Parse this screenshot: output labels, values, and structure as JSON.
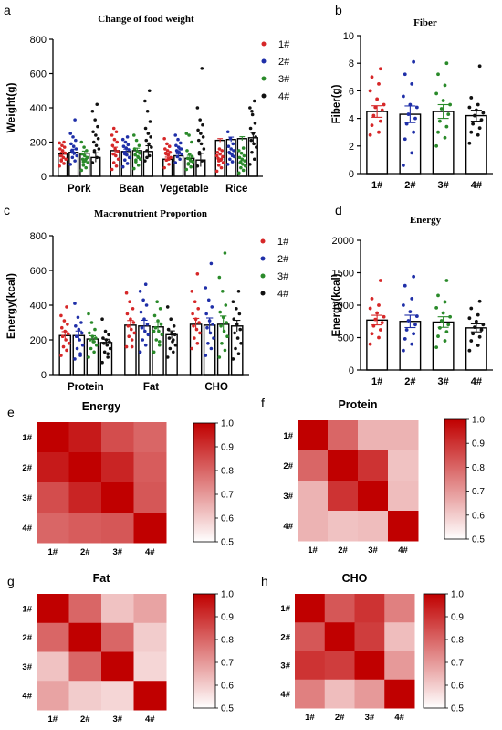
{
  "colors": {
    "1#": "#d62728",
    "2#": "#1f2fa8",
    "3#": "#2a8a2a",
    "4#": "#111111",
    "heat_high": "#c00000",
    "heat_low": "#ffffff"
  },
  "panel_letters": [
    "a",
    "b",
    "c",
    "d",
    "e",
    "f",
    "g",
    "h"
  ],
  "legend_labels": [
    "1#",
    "2#",
    "3#",
    "4#"
  ],
  "chart_data": [
    {
      "id": "a",
      "type": "bar",
      "title": "Change of  food weight",
      "ylabel": "Weight(g)",
      "xlabel": "",
      "categories": [
        "Pork",
        "Bean",
        "Vegetable",
        "Rice"
      ],
      "ylim": [
        0,
        800
      ],
      "yticks": [
        0,
        200,
        400,
        600,
        800
      ],
      "series": [
        {
          "name": "1#",
          "values": [
            130,
            150,
            100,
            210
          ]
        },
        {
          "name": "2#",
          "values": [
            140,
            145,
            120,
            215
          ]
        },
        {
          "name": "3#",
          "values": [
            135,
            150,
            105,
            220
          ]
        },
        {
          "name": "4#",
          "values": [
            110,
            145,
            95,
            225
          ]
        }
      ],
      "points": [
        [
          [
            60,
            75,
            90,
            100,
            110,
            120,
            135,
            150,
            160,
            170,
            180,
            195,
            200,
            95
          ],
          [
            40,
            60,
            80,
            100,
            120,
            130,
            145,
            160,
            180,
            200,
            215,
            240,
            260,
            280
          ],
          [
            50,
            70,
            95,
            110,
            125,
            135,
            140,
            150,
            160,
            175,
            190,
            220,
            100,
            130
          ],
          [
            30,
            50,
            65,
            80,
            95,
            105,
            115,
            130,
            140,
            150,
            160,
            120,
            100,
            90
          ]
        ],
        [
          [
            70,
            90,
            110,
            120,
            135,
            150,
            160,
            175,
            190,
            210,
            230,
            250,
            330,
            140
          ],
          [
            55,
            75,
            95,
            110,
            125,
            140,
            155,
            165,
            175,
            185,
            200,
            215,
            230,
            130
          ],
          [
            80,
            100,
            115,
            130,
            140,
            150,
            160,
            170,
            180,
            195,
            215,
            240,
            160,
            145
          ],
          [
            70,
            85,
            100,
            115,
            130,
            140,
            150,
            160,
            175,
            190,
            220,
            260,
            120,
            135
          ]
        ],
        [
          [
            35,
            50,
            65,
            80,
            90,
            100,
            110,
            120,
            130,
            150,
            170,
            200,
            100,
            85
          ],
          [
            45,
            65,
            85,
            100,
            115,
            125,
            135,
            145,
            160,
            180,
            210,
            240,
            110,
            95
          ],
          [
            40,
            55,
            70,
            85,
            95,
            105,
            115,
            130,
            150,
            200,
            240,
            250,
            90,
            75
          ],
          [
            20,
            35,
            50,
            60,
            70,
            80,
            90,
            100,
            110,
            120,
            135,
            150,
            165,
            85
          ]
        ],
        [
          [
            80,
            110,
            140,
            160,
            180,
            200,
            220,
            240,
            260,
            290,
            330,
            380,
            420,
            150
          ],
          [
            90,
            120,
            150,
            170,
            190,
            210,
            230,
            250,
            280,
            320,
            380,
            440,
            500,
            110
          ],
          [
            60,
            90,
            130,
            160,
            190,
            210,
            230,
            250,
            270,
            300,
            330,
            400,
            630,
            140
          ],
          [
            70,
            100,
            140,
            170,
            190,
            210,
            230,
            250,
            280,
            310,
            360,
            400,
            440,
            380
          ]
        ]
      ]
    },
    {
      "id": "b",
      "type": "bar",
      "title": "Fiber",
      "ylabel": "Fiber(g)",
      "xlabel": "",
      "categories": [
        "1#",
        "2#",
        "3#",
        "4#"
      ],
      "ylim": [
        0,
        10
      ],
      "yticks": [
        0,
        2,
        4,
        6,
        8,
        10
      ],
      "values": [
        4.5,
        4.3,
        4.5,
        4.2
      ],
      "points": [
        [
          2.8,
          3.0,
          3.5,
          3.8,
          4.2,
          4.6,
          4.8,
          5.0,
          5.4,
          6.0,
          6.5,
          7.0,
          7.6
        ],
        [
          0.6,
          1.5,
          2.5,
          3.0,
          3.6,
          4.0,
          4.3,
          4.8,
          5.0,
          5.6,
          6.5,
          7.2,
          8.1
        ],
        [
          2.0,
          2.6,
          3.0,
          3.4,
          3.8,
          4.3,
          4.7,
          5.0,
          5.3,
          5.8,
          6.4,
          7.2,
          8.0
        ],
        [
          2.2,
          2.8,
          3.0,
          3.3,
          3.6,
          3.9,
          4.2,
          4.4,
          4.6,
          4.8,
          5.0,
          5.5,
          7.8
        ]
      ]
    },
    {
      "id": "c",
      "type": "bar",
      "title": "Macronutrient Proportion",
      "ylabel": "Energy(kcal)",
      "xlabel": "",
      "categories": [
        "Protein",
        "Fat",
        "CHO"
      ],
      "ylim": [
        0,
        800
      ],
      "yticks": [
        0,
        200,
        400,
        600,
        800
      ],
      "series": [
        {
          "name": "1#",
          "values": [
            225,
            285,
            290
          ]
        },
        {
          "name": "2#",
          "values": [
            225,
            280,
            285
          ]
        },
        {
          "name": "3#",
          "values": [
            205,
            275,
            290
          ]
        },
        {
          "name": "4#",
          "values": [
            185,
            230,
            280
          ]
        }
      ],
      "points": [
        [
          [
            110,
            140,
            160,
            180,
            200,
            220,
            235,
            250,
            270,
            290,
            310,
            340,
            390
          ],
          [
            160,
            200,
            220,
            240,
            260,
            280,
            300,
            320,
            350,
            380,
            420,
            470,
            160
          ],
          [
            150,
            180,
            210,
            240,
            260,
            280,
            300,
            320,
            350,
            380,
            420,
            480,
            580
          ]
        ],
        [
          [
            90,
            120,
            150,
            170,
            200,
            220,
            240,
            260,
            280,
            300,
            330,
            410,
            110
          ],
          [
            130,
            170,
            200,
            230,
            250,
            270,
            290,
            320,
            360,
            400,
            430,
            480,
            520
          ],
          [
            110,
            150,
            180,
            210,
            240,
            270,
            290,
            310,
            350,
            390,
            430,
            500,
            640
          ]
        ],
        [
          [
            100,
            130,
            150,
            170,
            190,
            200,
            210,
            220,
            240,
            260,
            300,
            350,
            190
          ],
          [
            130,
            170,
            200,
            230,
            250,
            270,
            290,
            310,
            340,
            380,
            420,
            250,
            190
          ],
          [
            100,
            140,
            180,
            220,
            250,
            280,
            300,
            330,
            360,
            400,
            480,
            560,
            700
          ]
        ],
        [
          [
            70,
            100,
            130,
            150,
            170,
            180,
            190,
            200,
            210,
            230,
            250,
            320,
            120
          ],
          [
            100,
            130,
            150,
            170,
            190,
            210,
            230,
            240,
            260,
            280,
            320,
            390,
            200
          ],
          [
            90,
            120,
            150,
            180,
            210,
            240,
            260,
            290,
            320,
            350,
            380,
            420,
            480
          ]
        ]
      ]
    },
    {
      "id": "d",
      "type": "bar",
      "title": "Energy",
      "ylabel": "Energy(kcal)",
      "xlabel": "",
      "categories": [
        "1#",
        "2#",
        "3#",
        "4#"
      ],
      "ylim": [
        0,
        2000
      ],
      "yticks": [
        0,
        500,
        1000,
        1500,
        2000
      ],
      "values": [
        770,
        750,
        740,
        650
      ],
      "points": [
        [
          400,
          500,
          560,
          620,
          680,
          730,
          780,
          820,
          880,
          950,
          1000,
          1100,
          1380
        ],
        [
          300,
          400,
          480,
          560,
          620,
          700,
          760,
          830,
          900,
          1000,
          1100,
          1300,
          1440
        ],
        [
          350,
          450,
          520,
          590,
          650,
          700,
          760,
          820,
          880,
          960,
          1050,
          1150,
          1380
        ],
        [
          300,
          380,
          450,
          510,
          560,
          620,
          660,
          700,
          750,
          800,
          850,
          950,
          1060
        ]
      ]
    },
    {
      "id": "e",
      "type": "heatmap",
      "title": "Energy",
      "x": [
        "1#",
        "2#",
        "3#",
        "4#"
      ],
      "y": [
        "1#",
        "2#",
        "3#",
        "4#"
      ],
      "values": [
        [
          1.0,
          0.95,
          0.85,
          0.8
        ],
        [
          0.95,
          1.0,
          0.93,
          0.82
        ],
        [
          0.85,
          0.93,
          1.0,
          0.83
        ],
        [
          0.8,
          0.82,
          0.83,
          1.0
        ]
      ],
      "colorbar": {
        "range": [
          0.5,
          1.0
        ],
        "ticks": [
          "0.5",
          "0.6",
          "0.7",
          "0.8",
          "0.9",
          "1.0"
        ]
      }
    },
    {
      "id": "f",
      "type": "heatmap",
      "title": "Protein",
      "x": [
        "1#",
        "2#",
        "3#",
        "4#"
      ],
      "y": [
        "1#",
        "2#",
        "3#",
        "4#"
      ],
      "values": [
        [
          1.0,
          0.8,
          0.65,
          0.65
        ],
        [
          0.8,
          1.0,
          0.9,
          0.62
        ],
        [
          0.65,
          0.9,
          1.0,
          0.63
        ],
        [
          0.65,
          0.62,
          0.63,
          1.0
        ]
      ],
      "colorbar": {
        "range": [
          0.5,
          1.0
        ],
        "ticks": [
          "0.5",
          "0.6",
          "0.7",
          "0.8",
          "0.9",
          "1.0"
        ]
      }
    },
    {
      "id": "g",
      "type": "heatmap",
      "title": "Fat",
      "x": [
        "1#",
        "2#",
        "3#",
        "4#"
      ],
      "y": [
        "1#",
        "2#",
        "3#",
        "4#"
      ],
      "values": [
        [
          1.0,
          0.8,
          0.62,
          0.68
        ],
        [
          0.8,
          1.0,
          0.8,
          0.6
        ],
        [
          0.62,
          0.8,
          1.0,
          0.58
        ],
        [
          0.68,
          0.6,
          0.58,
          1.0
        ]
      ],
      "colorbar": {
        "range": [
          0.5,
          1.0
        ],
        "ticks": [
          "0.5",
          "0.6",
          "0.7",
          "0.8",
          "0.9",
          "1.0"
        ]
      }
    },
    {
      "id": "h",
      "type": "heatmap",
      "title": "CHO",
      "x": [
        "1#",
        "2#",
        "3#",
        "4#"
      ],
      "y": [
        "1#",
        "2#",
        "3#",
        "4#"
      ],
      "values": [
        [
          1.0,
          0.83,
          0.9,
          0.75
        ],
        [
          0.83,
          1.0,
          0.88,
          0.63
        ],
        [
          0.9,
          0.88,
          1.0,
          0.7
        ],
        [
          0.75,
          0.63,
          0.7,
          1.0
        ]
      ],
      "colorbar": {
        "range": [
          0.5,
          1.0
        ],
        "ticks": [
          "0.5",
          "0.6",
          "0.7",
          "0.8",
          "0.9",
          "1.0"
        ]
      }
    }
  ]
}
